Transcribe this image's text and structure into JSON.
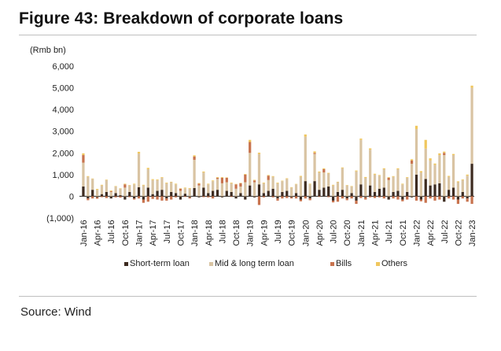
{
  "figure": {
    "title": "Figure 43: Breakdown of corporate loans",
    "source": "Source: Wind"
  },
  "chart_data": {
    "type": "bar",
    "stacked": true,
    "unit_label": "(Rmb bn)",
    "ylim": [
      -1000,
      6000
    ],
    "yticks": [
      -1000,
      0,
      1000,
      2000,
      3000,
      4000,
      5000,
      6000
    ],
    "ytick_labels": [
      "(1,000)",
      "0",
      "1,000",
      "2,000",
      "3,000",
      "4,000",
      "5,000",
      "6,000"
    ],
    "grid": false,
    "legend_position": "bottom",
    "colors": {
      "short_term": "#3d2b20",
      "mid_long": "#d9c4a3",
      "bills": "#c8734e",
      "others": "#f0c75e"
    },
    "x_tick_labels": [
      "Jan-16",
      "Apr-16",
      "Jul-16",
      "Oct-16",
      "Jan-17",
      "Apr-17",
      "Jul-17",
      "Oct-17",
      "Jan-18",
      "Apr-18",
      "Jul-18",
      "Oct-18",
      "Jan-19",
      "Apr-19",
      "Jul-19",
      "Oct-19",
      "Jan-20",
      "Apr-20",
      "Jul-20",
      "Oct-20",
      "Jan-21",
      "Apr-21",
      "Jul-21",
      "Oct-21",
      "Jan-22",
      "Apr-22",
      "Jul-22",
      "Oct-22",
      "Jan-23"
    ],
    "categories": [
      "Jan-16",
      "Feb-16",
      "Mar-16",
      "Apr-16",
      "May-16",
      "Jun-16",
      "Jul-16",
      "Aug-16",
      "Sep-16",
      "Oct-16",
      "Nov-16",
      "Dec-16",
      "Jan-17",
      "Feb-17",
      "Mar-17",
      "Apr-17",
      "May-17",
      "Jun-17",
      "Jul-17",
      "Aug-17",
      "Sep-17",
      "Oct-17",
      "Nov-17",
      "Dec-17",
      "Jan-18",
      "Feb-18",
      "Mar-18",
      "Apr-18",
      "May-18",
      "Jun-18",
      "Jul-18",
      "Aug-18",
      "Sep-18",
      "Oct-18",
      "Nov-18",
      "Dec-18",
      "Jan-19",
      "Feb-19",
      "Mar-19",
      "Apr-19",
      "May-19",
      "Jun-19",
      "Jul-19",
      "Aug-19",
      "Sep-19",
      "Oct-19",
      "Nov-19",
      "Dec-19",
      "Jan-20",
      "Feb-20",
      "Mar-20",
      "Apr-20",
      "May-20",
      "Jun-20",
      "Jul-20",
      "Aug-20",
      "Sep-20",
      "Oct-20",
      "Nov-20",
      "Dec-20",
      "Jan-21",
      "Feb-21",
      "Mar-21",
      "Apr-21",
      "May-21",
      "Jun-21",
      "Jul-21",
      "Aug-21",
      "Sep-21",
      "Oct-21",
      "Nov-21",
      "Dec-21",
      "Jan-22",
      "Feb-22",
      "Mar-22",
      "Apr-22",
      "May-22",
      "Jun-22",
      "Jul-22",
      "Aug-22",
      "Sep-22",
      "Oct-22",
      "Nov-22",
      "Dec-22",
      "Jan-23"
    ],
    "series": [
      {
        "name": "Short-term loan",
        "key": "short_term",
        "values": [
          450,
          -100,
          300,
          -50,
          100,
          200,
          -100,
          150,
          50,
          -150,
          200,
          -100,
          420,
          -150,
          400,
          100,
          250,
          300,
          -100,
          200,
          150,
          -150,
          120,
          -50,
          380,
          -50,
          400,
          150,
          250,
          300,
          -50,
          250,
          200,
          -100,
          150,
          -150,
          500,
          -50,
          550,
          150,
          250,
          350,
          -100,
          200,
          250,
          -50,
          150,
          -150,
          700,
          -100,
          700,
          300,
          400,
          450,
          -200,
          200,
          300,
          -100,
          150,
          -200,
          550,
          -50,
          500,
          200,
          350,
          400,
          -150,
          200,
          250,
          -150,
          200,
          -50,
          1000,
          -150,
          800,
          500,
          550,
          600,
          -250,
          300,
          400,
          -150,
          200,
          -100,
          1500
        ]
      },
      {
        "name": "Mid & long term loan",
        "key": "mid_long",
        "values": [
          1100,
          900,
          500,
          300,
          400,
          550,
          200,
          300,
          300,
          400,
          300,
          550,
          1550,
          500,
          850,
          650,
          500,
          550,
          600,
          450,
          400,
          250,
          250,
          350,
          1300,
          500,
          700,
          400,
          450,
          500,
          600,
          400,
          400,
          350,
          300,
          650,
          1500,
          650,
          1400,
          450,
          500,
          550,
          600,
          500,
          550,
          400,
          400,
          900,
          2050,
          550,
          1250,
          800,
          700,
          600,
          500,
          450,
          1000,
          500,
          300,
          1150,
          2050,
          850,
          1650,
          800,
          600,
          850,
          750,
          700,
          1000,
          550,
          650,
          1500,
          2100,
          1100,
          1400,
          1150,
          900,
          1300,
          1900,
          600,
          1500,
          650,
          550,
          950,
          3500
        ]
      },
      {
        "name": "Bills",
        "key": "bills",
        "values": [
          350,
          -80,
          -100,
          -60,
          -40,
          -80,
          40,
          -50,
          -60,
          150,
          -40,
          -50,
          -100,
          -150,
          -250,
          -120,
          -150,
          -200,
          -100,
          -150,
          -50,
          100,
          -30,
          -50,
          150,
          80,
          -40,
          -50,
          -100,
          50,
          250,
          200,
          -30,
          200,
          150,
          350,
          500,
          80,
          -400,
          -50,
          200,
          -50,
          -100,
          -100,
          -80,
          -50,
          -100,
          -80,
          -100,
          -80,
          50,
          -30,
          150,
          -40,
          -80,
          -250,
          -100,
          -80,
          -100,
          -150,
          -80,
          -100,
          -50,
          -80,
          -50,
          -100,
          100,
          -100,
          -150,
          -80,
          -150,
          150,
          -200,
          -80,
          -300,
          -100,
          -200,
          -150,
          100,
          -100,
          -150,
          -200,
          -100,
          -150,
          -350
        ]
      },
      {
        "name": "Others",
        "key": "others",
        "values": [
          80,
          30,
          20,
          40,
          30,
          20,
          30,
          20,
          20,
          30,
          20,
          30,
          80,
          30,
          60,
          40,
          30,
          30,
          30,
          20,
          30,
          20,
          30,
          30,
          60,
          30,
          40,
          30,
          30,
          30,
          30,
          20,
          30,
          20,
          20,
          30,
          100,
          30,
          60,
          30,
          30,
          30,
          30,
          20,
          30,
          20,
          20,
          40,
          100,
          30,
          70,
          40,
          40,
          30,
          30,
          20,
          30,
          20,
          20,
          40,
          60,
          40,
          60,
          40,
          30,
          40,
          30,
          30,
          40,
          30,
          30,
          60,
          150,
          60,
          400,
          100,
          60,
          80,
          60,
          40,
          50,
          40,
          30,
          50,
          100
        ]
      }
    ]
  }
}
